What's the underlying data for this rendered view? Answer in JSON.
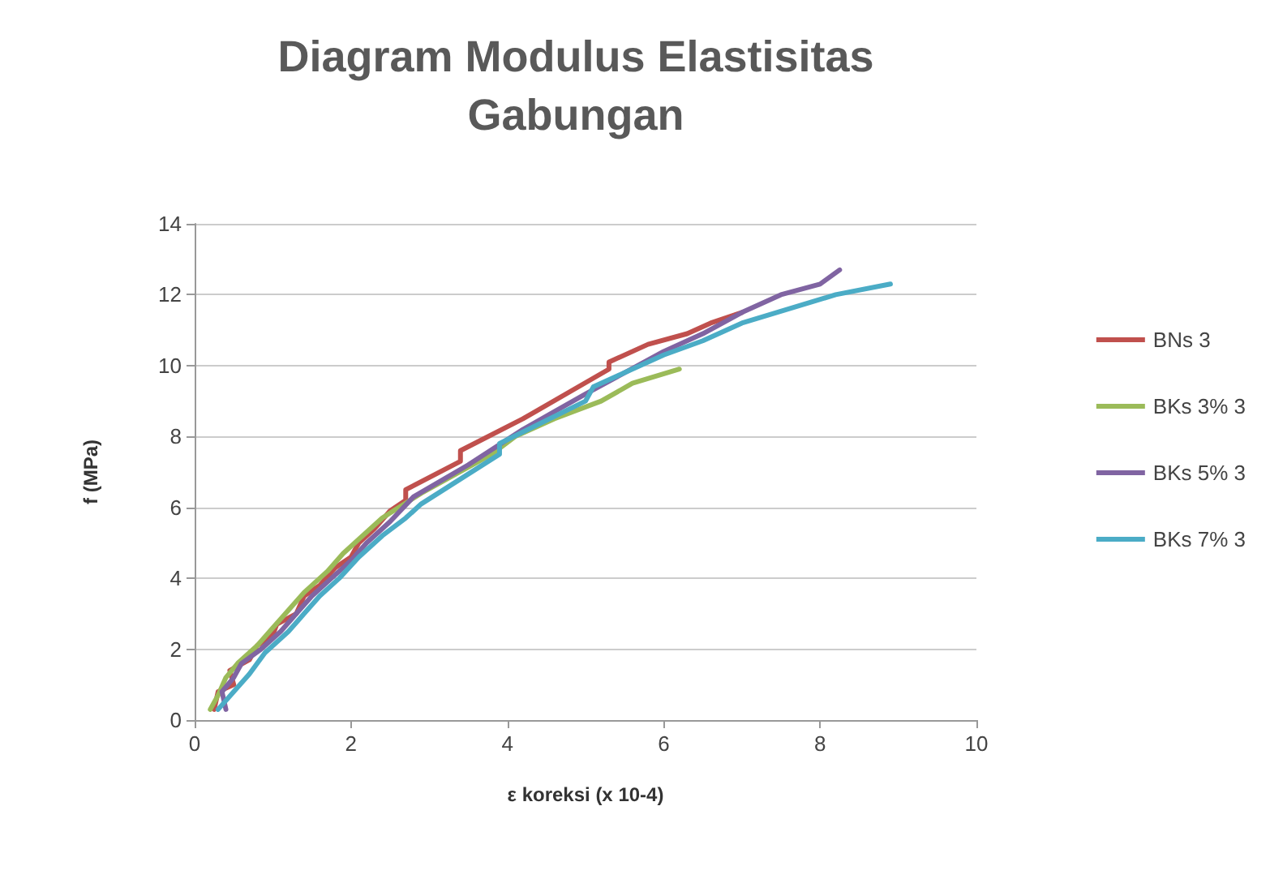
{
  "chart_data": {
    "type": "line",
    "title": "Diagram Modulus Elastisitas\nGabungan",
    "xlabel": "ε koreksi (x 10-4)",
    "ylabel": "f (MPa)",
    "xlim": [
      0,
      10
    ],
    "xticks": [
      0,
      2,
      4,
      6,
      8,
      10
    ],
    "ylim": [
      0,
      14
    ],
    "yticks": [
      0,
      2,
      4,
      6,
      8,
      10,
      12,
      14
    ],
    "grid": "y",
    "legend": "right",
    "marker": "none",
    "line_style": "solid",
    "series": [
      {
        "name": "BNs 3",
        "color": "#c0504d",
        "x": [
          0.25,
          0.3,
          0.5,
          0.45,
          0.7,
          0.8,
          1.0,
          1.05,
          1.3,
          1.4,
          1.6,
          1.8,
          2.0,
          2.1,
          2.3,
          2.5,
          2.7,
          2.7,
          3.4,
          3.4,
          4.2,
          5.3,
          5.3,
          5.8,
          6.3,
          6.6,
          7.0
        ],
        "values": [
          0.3,
          0.8,
          1.0,
          1.4,
          1.7,
          2.1,
          2.4,
          2.7,
          3.0,
          3.5,
          3.8,
          4.3,
          4.6,
          5.0,
          5.4,
          5.9,
          6.2,
          6.5,
          7.3,
          7.6,
          8.5,
          9.9,
          10.1,
          10.6,
          10.9,
          11.2,
          11.5
        ]
      },
      {
        "name": "BKs 3% 3",
        "color": "#9bbb59",
        "x": [
          0.2,
          0.3,
          0.4,
          0.55,
          0.8,
          1.0,
          1.2,
          1.4,
          1.7,
          1.9,
          2.2,
          2.4,
          2.9,
          3.8,
          4.1,
          4.6,
          5.2,
          5.6,
          6.2
        ],
        "values": [
          0.3,
          0.7,
          1.2,
          1.6,
          2.1,
          2.6,
          3.1,
          3.6,
          4.2,
          4.7,
          5.3,
          5.7,
          6.4,
          7.5,
          8.0,
          8.5,
          9.0,
          9.5,
          9.9
        ]
      },
      {
        "name": "BKs 5% 3",
        "color": "#8064a2",
        "x": [
          0.4,
          0.35,
          0.5,
          0.6,
          0.85,
          1.1,
          1.3,
          1.5,
          1.75,
          2.0,
          2.2,
          2.5,
          2.8,
          3.5,
          4.2,
          5.0,
          5.5,
          6.0,
          6.5,
          7.0,
          7.5,
          8.0,
          8.25
        ],
        "values": [
          0.3,
          0.8,
          1.2,
          1.6,
          2.0,
          2.5,
          3.0,
          3.5,
          4.0,
          4.5,
          5.0,
          5.6,
          6.3,
          7.2,
          8.2,
          9.2,
          9.8,
          10.4,
          10.9,
          11.5,
          12.0,
          12.3,
          12.7
        ]
      },
      {
        "name": "BKs 7% 3",
        "color": "#4bacc6",
        "x": [
          0.3,
          0.5,
          0.7,
          0.9,
          1.2,
          1.4,
          1.6,
          1.85,
          2.1,
          2.4,
          2.7,
          2.9,
          3.9,
          3.9,
          5.0,
          5.1,
          5.5,
          6.0,
          6.5,
          7.0,
          7.9,
          8.2,
          8.9
        ],
        "values": [
          0.3,
          0.8,
          1.3,
          1.9,
          2.5,
          3.0,
          3.5,
          4.0,
          4.6,
          5.2,
          5.7,
          6.1,
          7.5,
          7.8,
          9.0,
          9.4,
          9.8,
          10.3,
          10.7,
          11.2,
          11.8,
          12.0,
          12.3
        ]
      }
    ]
  }
}
